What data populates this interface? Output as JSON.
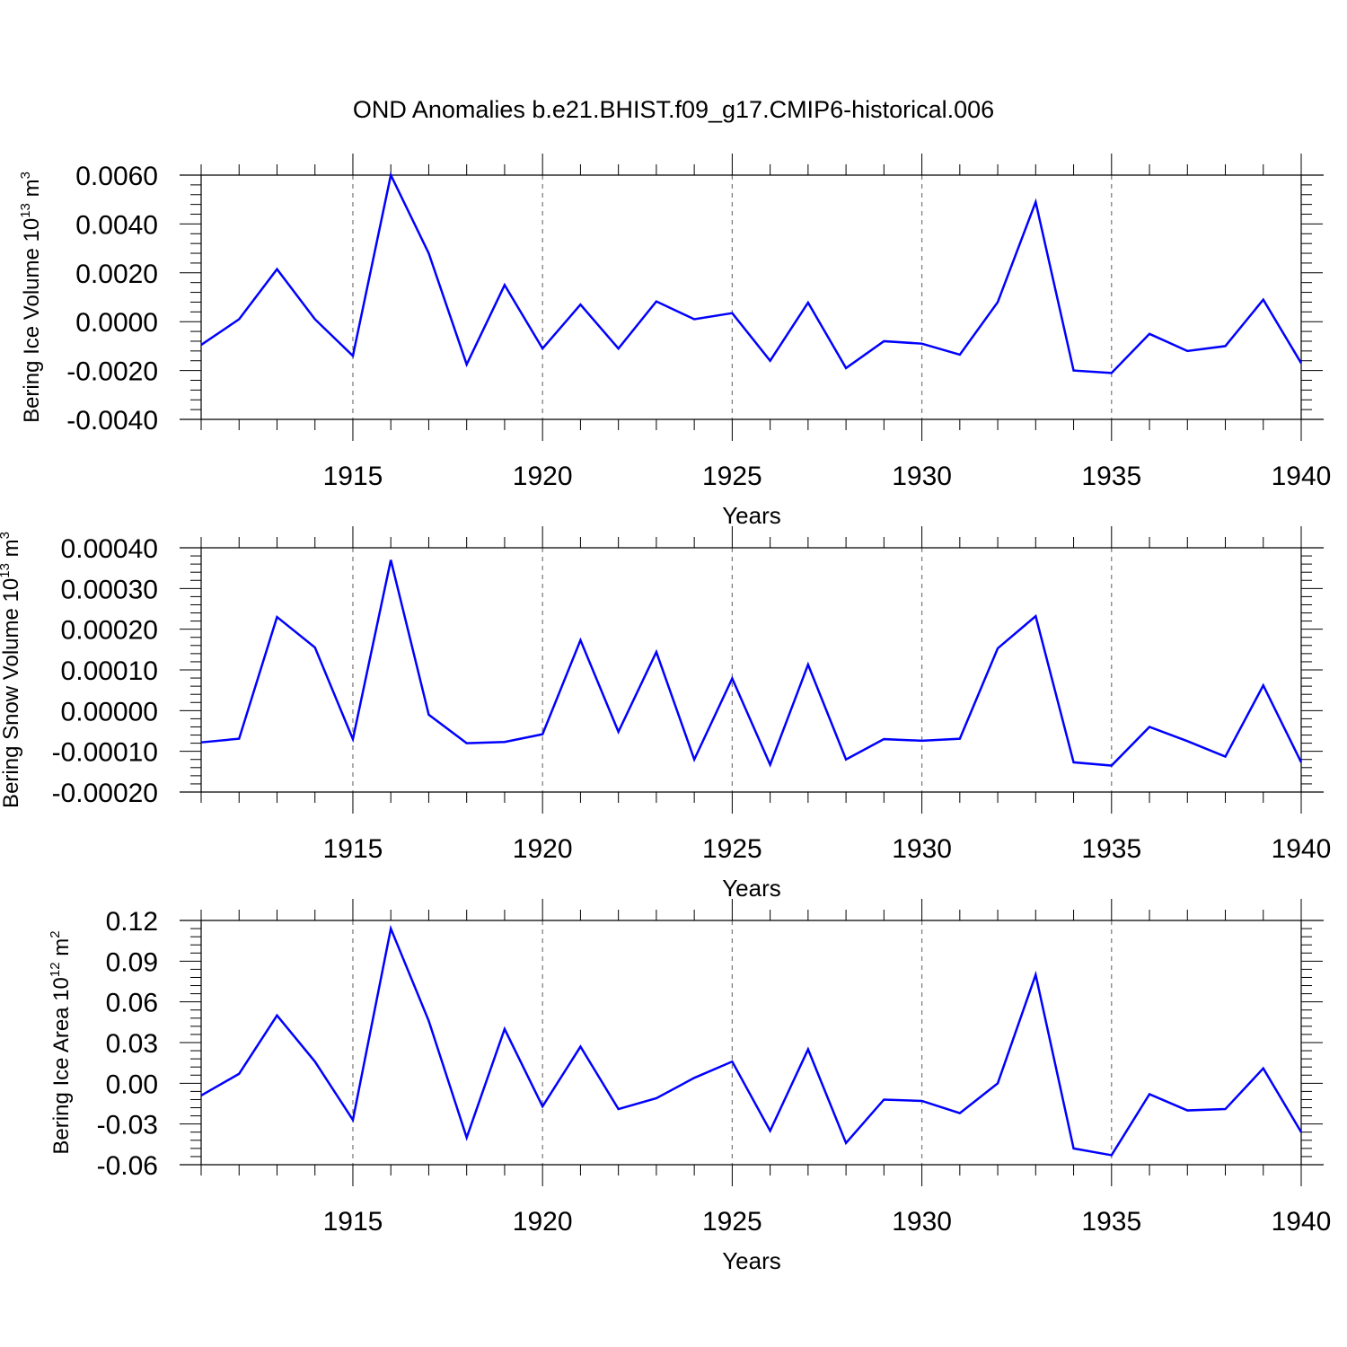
{
  "figure": {
    "title": "OND Anomalies b.e21.BHIST.f09_g17.CMIP6-historical.006"
  },
  "style": {
    "line_color": "#0000ff",
    "axis_color": "#000000",
    "grid_color": "#777777",
    "background": "#ffffff"
  },
  "chart_data": [
    {
      "type": "line",
      "ylabel_main": "Bering Ice Volume 10",
      "ylabel_exp": "13",
      "ylabel_unit": " m",
      "ylabel_unit_exp": "3",
      "xlabel": "Years",
      "xlim": [
        1911,
        1940
      ],
      "ylim": [
        -0.004,
        0.006
      ],
      "yticks": [
        -0.004,
        -0.002,
        0.0,
        0.002,
        0.004,
        0.006
      ],
      "ytick_labels": [
        "-0.0040",
        "-0.0020",
        "0.0000",
        "0.0020",
        "0.0040",
        "0.0060"
      ],
      "xticks": [
        1915,
        1920,
        1925,
        1930,
        1935,
        1940
      ],
      "xtick_labels": [
        "1915",
        "1920",
        "1925",
        "1930",
        "1935",
        "1940"
      ],
      "x": [
        1911,
        1912,
        1913,
        1914,
        1915,
        1916,
        1917,
        1918,
        1919,
        1920,
        1921,
        1922,
        1923,
        1924,
        1925,
        1926,
        1927,
        1928,
        1929,
        1930,
        1931,
        1932,
        1933,
        1934,
        1935,
        1936,
        1937,
        1938,
        1939,
        1940
      ],
      "values": [
        -0.00095,
        0.0001,
        0.00215,
        0.0001,
        -0.0014,
        0.006,
        0.0028,
        -0.00175,
        0.0015,
        -0.0011,
        0.0007,
        -0.0011,
        0.00083,
        0.0001,
        0.00035,
        -0.0016,
        0.00078,
        -0.0019,
        -0.0008,
        -0.0009,
        -0.00135,
        0.0008,
        0.0049,
        -0.002,
        -0.0021,
        -0.0005,
        -0.0012,
        -0.001,
        0.0009,
        -0.0017
      ]
    },
    {
      "type": "line",
      "ylabel_main": "Bering Snow Volume 10",
      "ylabel_exp": "13",
      "ylabel_unit": " m",
      "ylabel_unit_exp": "3",
      "xlabel": "Years",
      "xlim": [
        1911,
        1940
      ],
      "ylim": [
        -0.0002,
        0.0004
      ],
      "yticks": [
        -0.0002,
        -0.0001,
        0.0,
        0.0001,
        0.0002,
        0.0003,
        0.0004
      ],
      "ytick_labels": [
        "-0.00020",
        "-0.00010",
        "0.00000",
        "0.00010",
        "0.00020",
        "0.00030",
        "0.00040"
      ],
      "xticks": [
        1915,
        1920,
        1925,
        1930,
        1935,
        1940
      ],
      "xtick_labels": [
        "1915",
        "1920",
        "1925",
        "1930",
        "1935",
        "1940"
      ],
      "x": [
        1911,
        1912,
        1913,
        1914,
        1915,
        1916,
        1917,
        1918,
        1919,
        1920,
        1921,
        1922,
        1923,
        1924,
        1925,
        1926,
        1927,
        1928,
        1929,
        1930,
        1931,
        1932,
        1933,
        1934,
        1935,
        1936,
        1937,
        1938,
        1939,
        1940
      ],
      "values": [
        -7.8e-05,
        -6.9e-05,
        0.00023,
        0.000155,
        -7e-05,
        0.00037,
        -1e-05,
        -8e-05,
        -7.7e-05,
        -5.8e-05,
        0.000173,
        -5.2e-05,
        0.000144,
        -0.00012,
        7.9e-05,
        -0.000133,
        0.000113,
        -0.00012,
        -7e-05,
        -7.4e-05,
        -6.9e-05,
        0.000153,
        0.000232,
        -0.000127,
        -0.000135,
        -4e-05,
        -7.5e-05,
        -0.000113,
        6.2e-05,
        -0.000127
      ]
    },
    {
      "type": "line",
      "ylabel_main": "Bering Ice Area 10",
      "ylabel_exp": "12",
      "ylabel_unit": " m",
      "ylabel_unit_exp": "2",
      "xlabel": "Years",
      "xlim": [
        1911,
        1940
      ],
      "ylim": [
        -0.06,
        0.12
      ],
      "yticks": [
        -0.06,
        -0.03,
        0.0,
        0.03,
        0.06,
        0.09,
        0.12
      ],
      "ytick_labels": [
        "-0.06",
        "-0.03",
        "0.00",
        "0.03",
        "0.06",
        "0.09",
        "0.12"
      ],
      "xticks": [
        1915,
        1920,
        1925,
        1930,
        1935,
        1940
      ],
      "xtick_labels": [
        "1915",
        "1920",
        "1925",
        "1930",
        "1935",
        "1940"
      ],
      "x": [
        1911,
        1912,
        1913,
        1914,
        1915,
        1916,
        1917,
        1918,
        1919,
        1920,
        1921,
        1922,
        1923,
        1924,
        1925,
        1926,
        1927,
        1928,
        1929,
        1930,
        1931,
        1932,
        1933,
        1934,
        1935,
        1936,
        1937,
        1938,
        1939,
        1940
      ],
      "values": [
        -0.009,
        0.007,
        0.05,
        0.016,
        -0.027,
        0.114,
        0.046,
        -0.04,
        0.04,
        -0.017,
        0.027,
        -0.019,
        -0.011,
        0.004,
        0.016,
        -0.035,
        0.025,
        -0.044,
        -0.012,
        -0.013,
        -0.022,
        0.0,
        0.08,
        -0.048,
        -0.053,
        -0.008,
        -0.02,
        -0.019,
        0.011,
        -0.036
      ]
    }
  ]
}
